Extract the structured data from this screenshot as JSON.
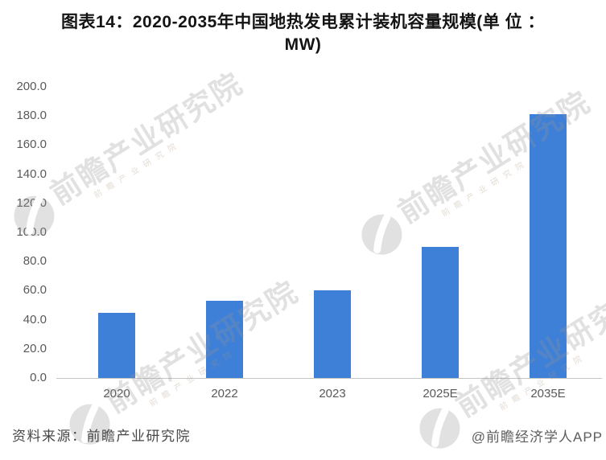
{
  "title": {
    "line1": "图表14：2020-2035年中国地热发电累计装机容量规模(单 位 ：",
    "line2": "MW)"
  },
  "chart_data": {
    "type": "bar",
    "title": "图表14：2020-2035年中国地热发电累计装机容量规模(单位：MW)",
    "unit": "MW",
    "categories": [
      "2020",
      "2022",
      "2023",
      "2025E",
      "2035E"
    ],
    "values": [
      45,
      53,
      60,
      90,
      181
    ],
    "xlabel": "",
    "ylabel": "",
    "ylim": [
      0,
      200
    ],
    "ytick_step": 20,
    "ytick_labels": [
      "0.0",
      "20.0",
      "40.0",
      "60.0",
      "80.0",
      "100.0",
      "120.0",
      "140.0",
      "160.0",
      "180.0",
      "200.0"
    ],
    "bar_color": "#3E80D8",
    "grid": false,
    "legend": "none",
    "data_labels": "none"
  },
  "watermark": {
    "text": "前瞻产业研究院",
    "subtext": "前瞻产业研究院"
  },
  "footer": {
    "source": "资料来源：前瞻产业研究院",
    "credit": "@前瞻经济学人APP"
  },
  "colors": {
    "background": "#ffffff",
    "bar": "#3E80D8",
    "axis_text": "#595959",
    "axis_line": "#c4c4c4",
    "title_text": "#141414",
    "footer_source": "#474747",
    "footer_credit": "#5d5d5d",
    "watermark": "#949494"
  }
}
